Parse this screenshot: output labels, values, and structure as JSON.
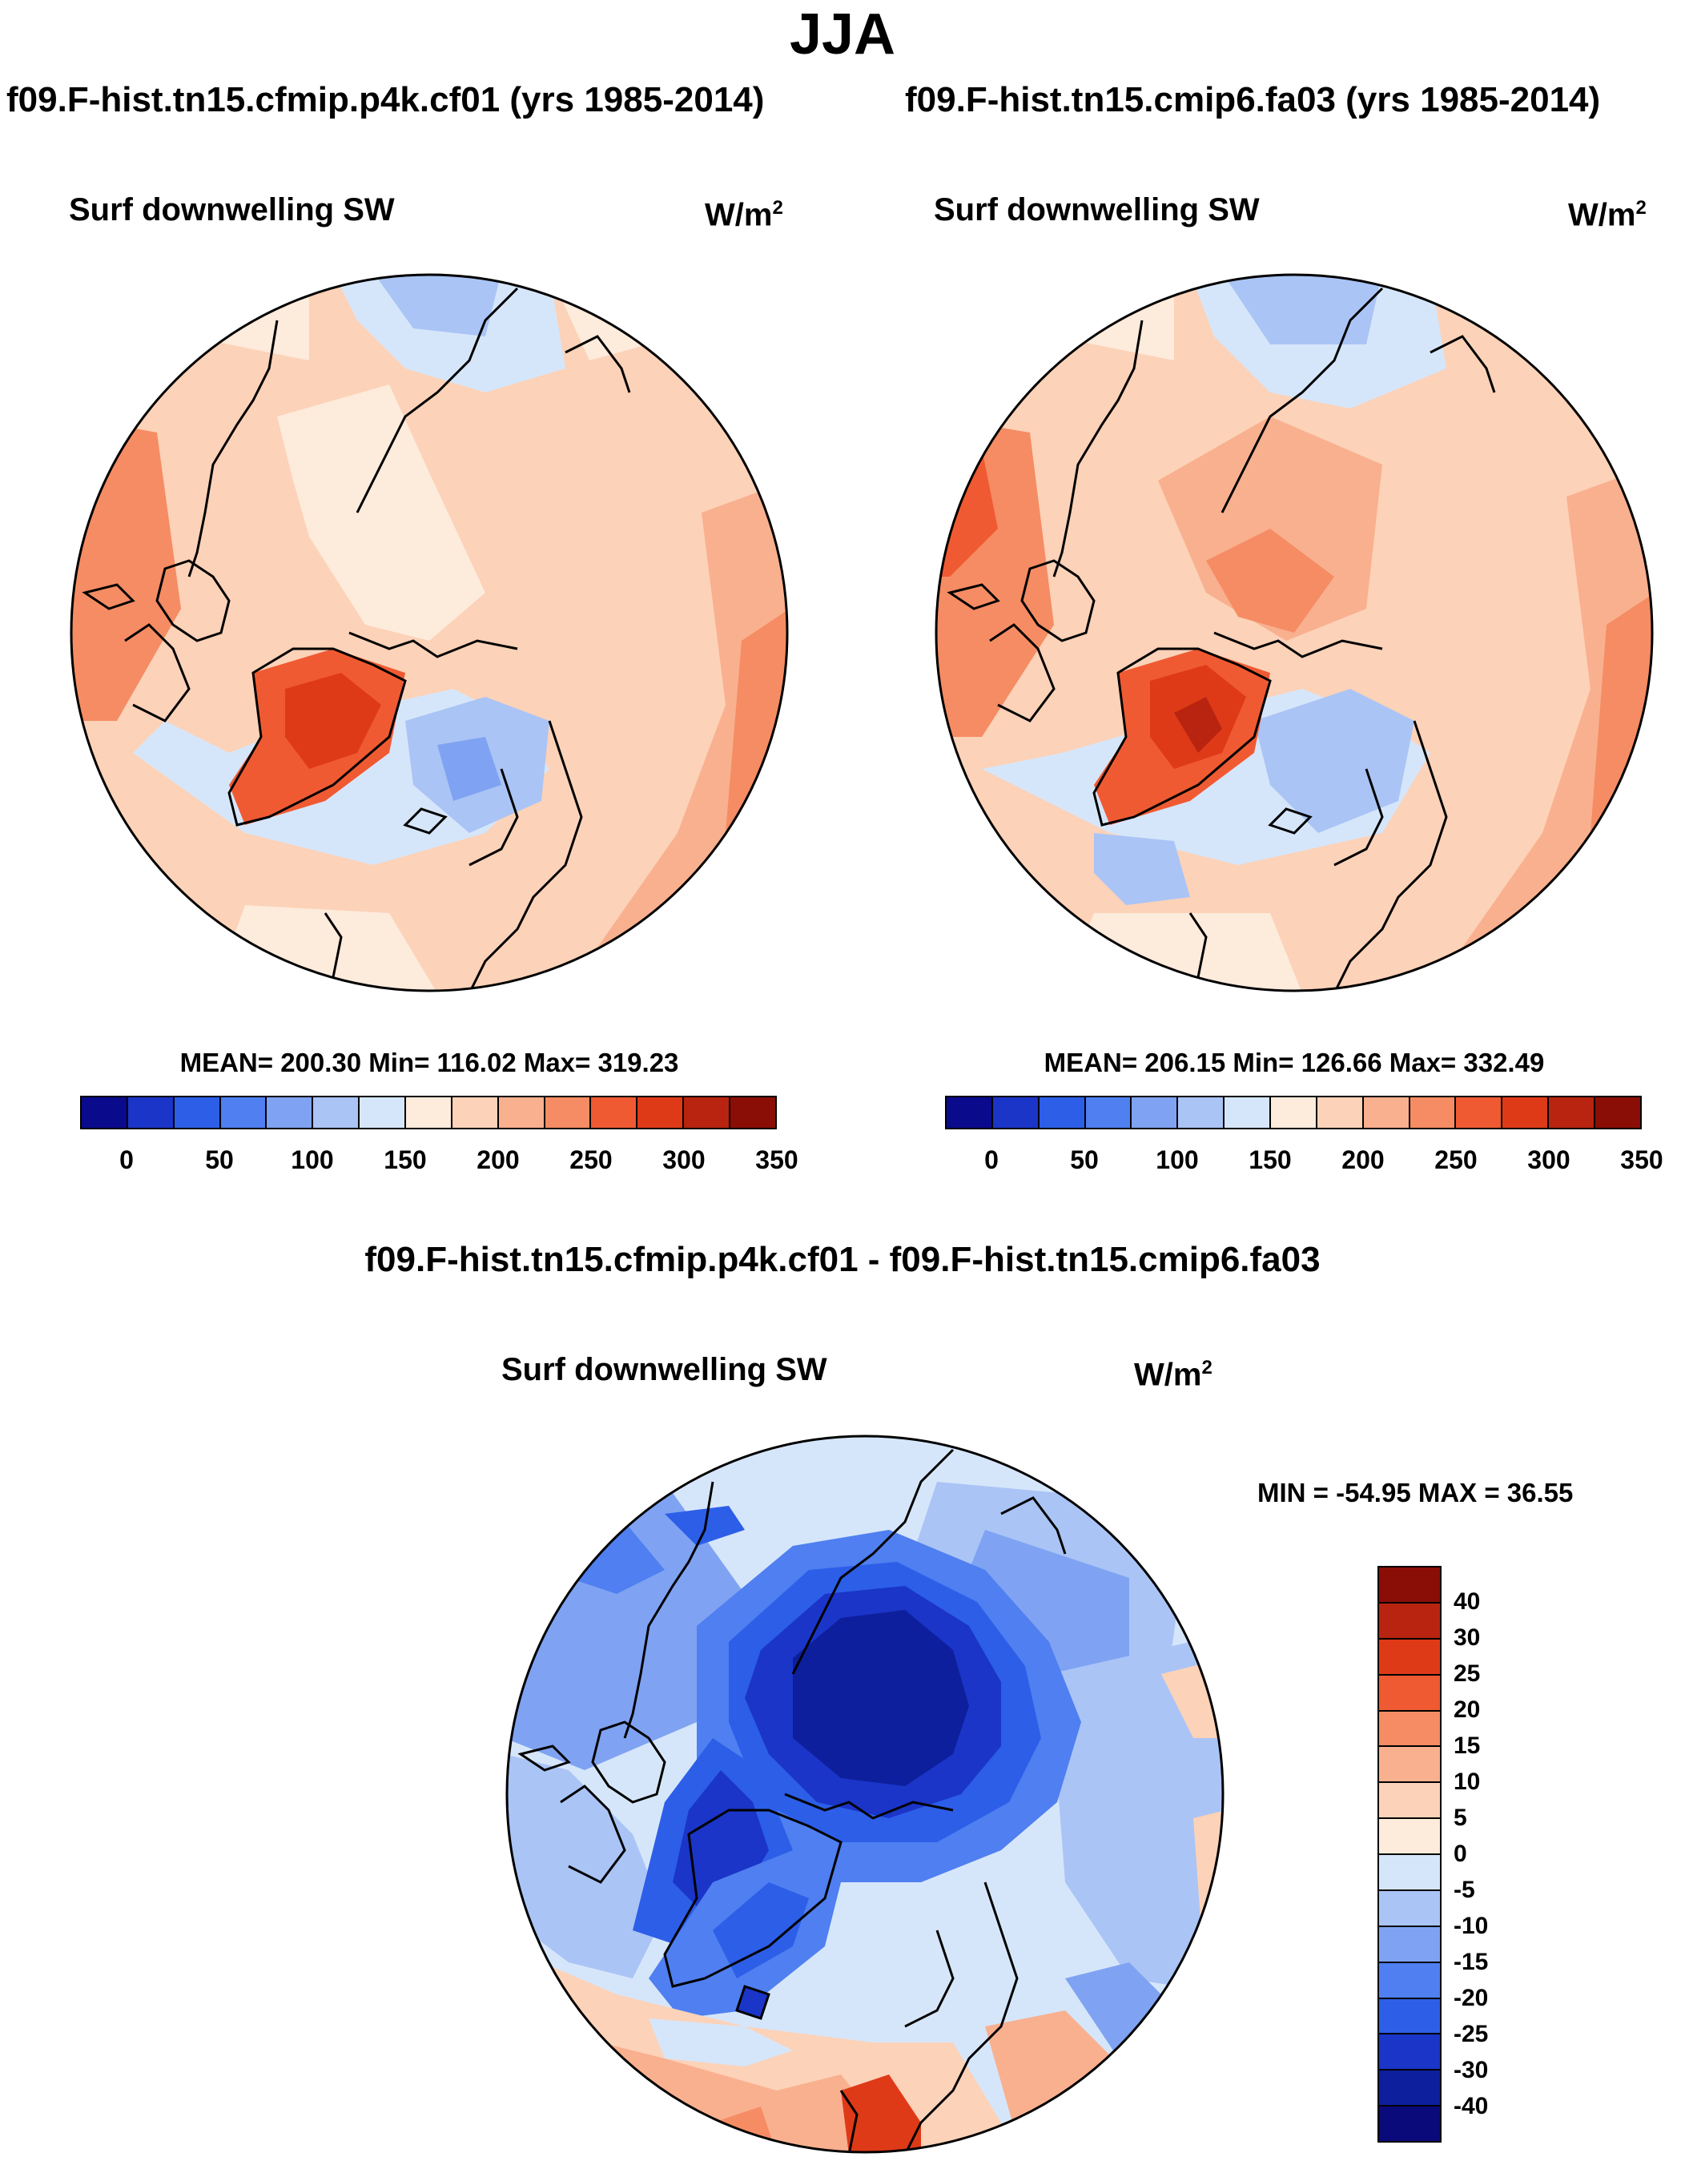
{
  "title": "JJA",
  "panels": [
    {
      "case": "f09.F-hist.tn15.cfmip.p4k.cf01 (yrs 1985-2014)",
      "variable": "Surf downwelling SW",
      "units": "W/m",
      "units_exp": "2",
      "stats": "MEAN= 200.30  Min= 116.02  Max= 319.23"
    },
    {
      "case": "f09.F-hist.tn15.cmip6.fa03 (yrs 1985-2014)",
      "variable": "Surf downwelling SW",
      "units": "W/m",
      "units_exp": "2",
      "stats": "MEAN= 206.15  Min= 126.66  Max= 332.49"
    }
  ],
  "abs_colorbar": {
    "ticks": [
      "0",
      "50",
      "100",
      "150",
      "200",
      "250",
      "300",
      "350"
    ],
    "colors": [
      "#0a0a8c",
      "#1a35c8",
      "#2c5ee8",
      "#4f7ff0",
      "#7fa3f2",
      "#aac4f5",
      "#d6e6fa",
      "#fdebdc",
      "#fcd2b8",
      "#f9b08f",
      "#f58c63",
      "#f05a32",
      "#df3a18",
      "#b82410",
      "#8a0e06"
    ]
  },
  "diff": {
    "title": "f09.F-hist.tn15.cfmip.p4k.cf01 - f09.F-hist.tn15.cmip6.fa03",
    "variable": "Surf downwelling SW",
    "units": "W/m",
    "units_exp": "2",
    "stats": "MIN = -54.95 MAX =  36.55",
    "colorbar_labels": [
      "40",
      "30",
      "25",
      "20",
      "15",
      "10",
      "5",
      "0",
      "-5",
      "-10",
      "-15",
      "-20",
      "-25",
      "-30",
      "-40"
    ],
    "colorbar_colors": [
      "#8a0e06",
      "#b82410",
      "#df3a18",
      "#f05a32",
      "#f58c63",
      "#f9b08f",
      "#fcd2b8",
      "#fdebdc",
      "#d6e6fa",
      "#aac4f5",
      "#7fa3f2",
      "#4f7ff0",
      "#2c5ee8",
      "#1a35c8",
      "#0d1f9c",
      "#0a0a7a"
    ]
  }
}
